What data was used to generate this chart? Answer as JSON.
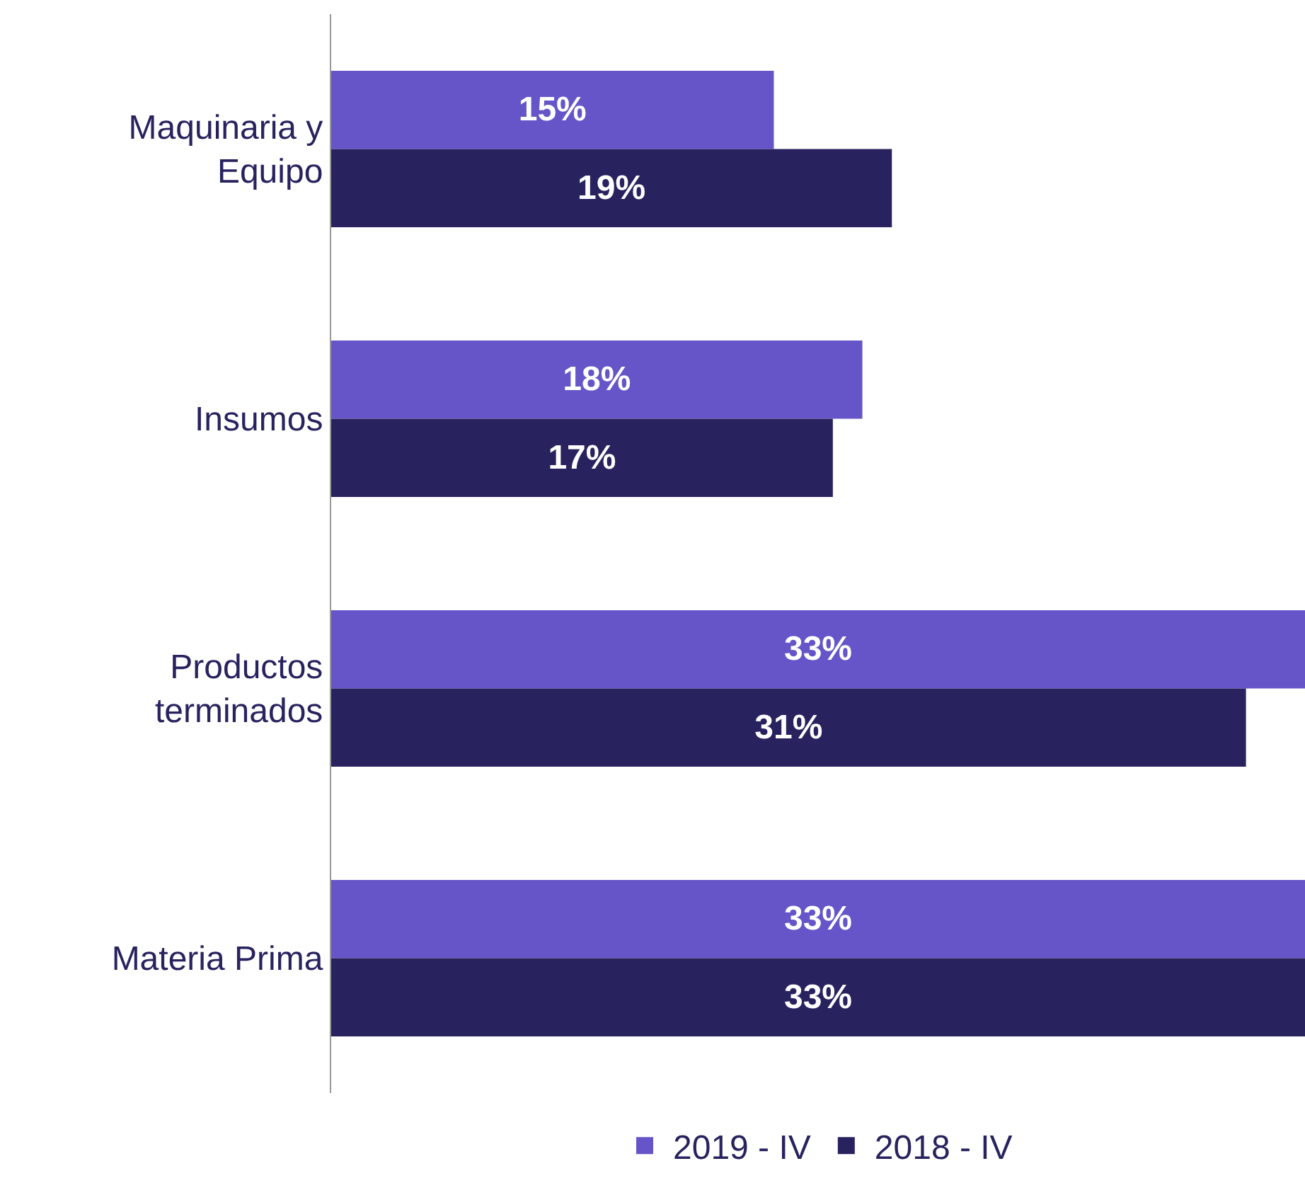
{
  "chart_data": {
    "type": "bar",
    "orientation": "horizontal",
    "categories": [
      "Maquinaria y Equipo",
      "Insumos",
      "Productos terminados",
      "Materia Prima"
    ],
    "series": [
      {
        "name": "2019 - IV",
        "color": "#6655c8",
        "values": [
          15,
          18,
          33,
          33
        ],
        "value_labels": [
          "15%",
          "18%",
          "33%",
          "33%"
        ]
      },
      {
        "name": "2018 - IV",
        "color": "#28235f",
        "values": [
          19,
          17,
          31,
          33
        ],
        "value_labels": [
          "19%",
          "17%",
          "31%",
          "33%"
        ]
      }
    ],
    "xlim": [
      0,
      33
    ],
    "tick_labels": "y",
    "legend": "bottom"
  }
}
